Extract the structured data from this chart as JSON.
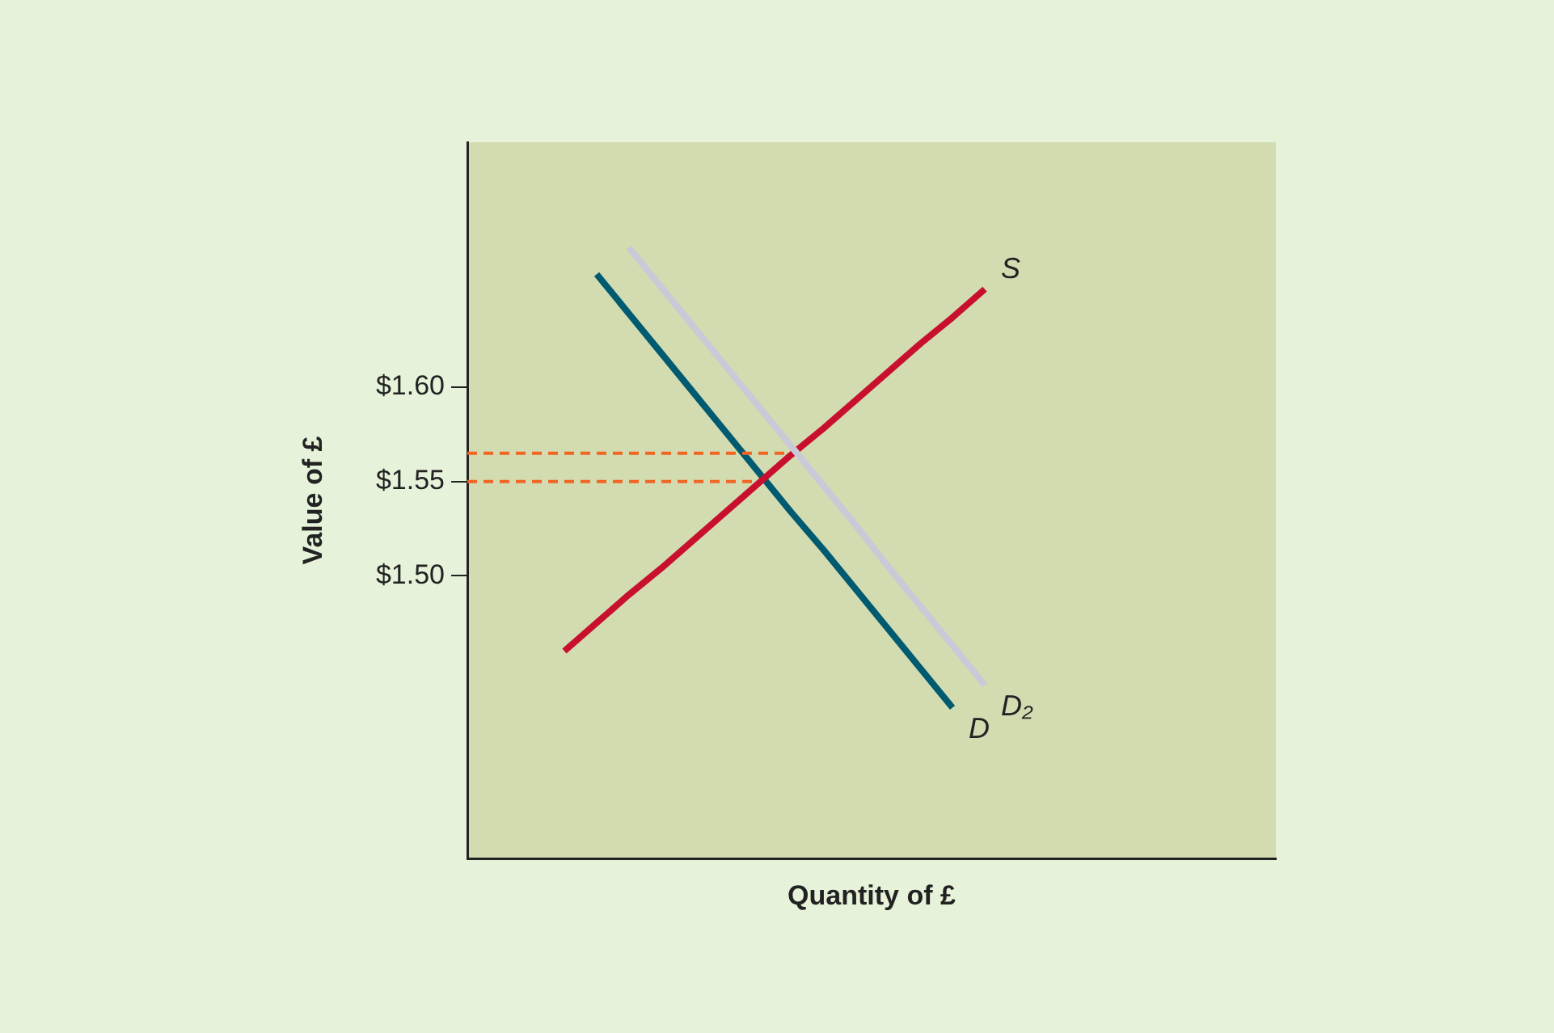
{
  "chart_data": {
    "type": "line",
    "xlabel": "Quantity of £",
    "ylabel": "Value of £",
    "categories": [
      null,
      null,
      null,
      null,
      null,
      null,
      null,
      null,
      null,
      null,
      null,
      null,
      null,
      null,
      null,
      null,
      null,
      null,
      null,
      null,
      null,
      null,
      null,
      null,
      null,
      null
    ],
    "series": [
      {
        "name": "D₂",
        "color": "#c9c9d8",
        "values": [
          null,
          null,
          null,
          null,
          null,
          1.674,
          1.653,
          1.632,
          1.611,
          1.59,
          1.569,
          1.548,
          1.527,
          1.505,
          1.484,
          1.463,
          1.442,
          null,
          null,
          null,
          null,
          null,
          null,
          null,
          null,
          null
        ]
      },
      {
        "color": "#f26522",
        "line_style": "dashed",
        "values": [
          1.565,
          1.565,
          1.565,
          1.565,
          1.565,
          1.565,
          1.565,
          1.565,
          1.565,
          1.565,
          1.565,
          null,
          null,
          null,
          null,
          null,
          null,
          null,
          null,
          null,
          null,
          null,
          null,
          null,
          null,
          null
        ]
      },
      {
        "color": "#f26522",
        "line_style": "dashed",
        "values": [
          1.55,
          1.55,
          1.55,
          1.55,
          1.55,
          1.55,
          1.55,
          1.55,
          1.55,
          1.55,
          null,
          null,
          null,
          null,
          null,
          null,
          null,
          null,
          null,
          null,
          null,
          null,
          null,
          null,
          null,
          null
        ]
      },
      {
        "name": "S",
        "color": "#c8102e",
        "values": [
          null,
          null,
          null,
          1.46,
          1.475,
          1.49,
          1.504,
          1.519,
          1.534,
          1.549,
          1.564,
          1.578,
          1.593,
          1.608,
          1.623,
          1.637,
          1.652,
          null,
          null,
          null,
          null,
          null,
          null,
          null,
          null,
          null
        ]
      },
      {
        "name": "D",
        "color": "#005a70",
        "values": [
          null,
          null,
          null,
          null,
          1.66,
          1.639,
          1.618,
          1.597,
          1.576,
          1.555,
          1.534,
          1.514,
          1.493,
          1.472,
          1.451,
          1.43,
          null,
          null,
          null,
          null,
          null,
          null,
          null,
          null,
          null,
          null
        ]
      }
    ],
    "ylim": [
      1.35,
      1.73
    ],
    "yticks": [
      {
        "value": 1.5,
        "label": "$1.50"
      },
      {
        "value": 1.55,
        "label": "$1.55"
      },
      {
        "value": 1.6,
        "label": "$1.60"
      }
    ],
    "tick_labels": "y",
    "grid": false,
    "legend": false,
    "marker": "none"
  }
}
